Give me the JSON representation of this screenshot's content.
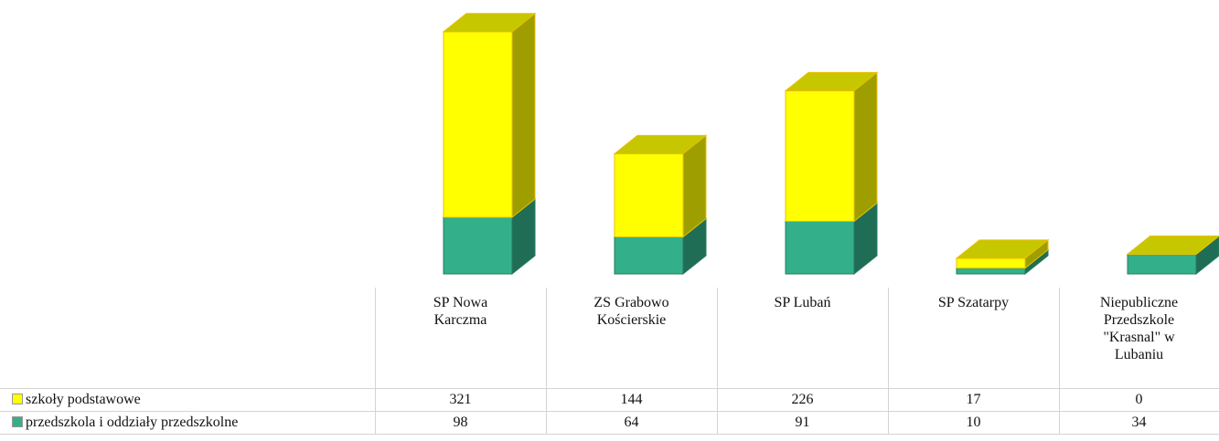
{
  "chart_data": {
    "type": "bar3d_stacked",
    "categories": [
      "SP Nowa Karczma",
      "ZS Grabowo Kościerskie",
      "SP Lubań",
      "SP Szatarpy",
      "Niepubliczne Przedszkole \"Krasnal\" w Lubaniu"
    ],
    "series": [
      {
        "name": "szkoły podstawowe",
        "color": "#ffff00",
        "values": [
          321,
          144,
          226,
          17,
          0
        ]
      },
      {
        "name": "przedszkola i oddziały przedszkolne",
        "color": "#33b08a",
        "values": [
          98,
          64,
          91,
          10,
          34
        ]
      }
    ]
  }
}
